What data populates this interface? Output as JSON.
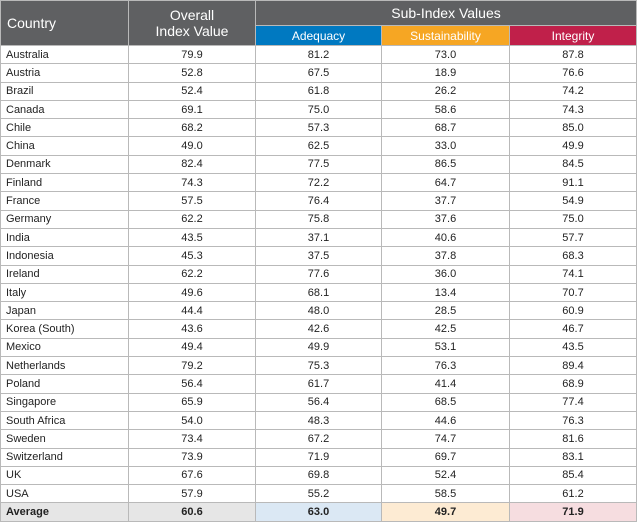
{
  "header": {
    "country": "Country",
    "overall_line1": "Overall",
    "overall_line2": "Index Value",
    "subindex": "Sub-Index Values",
    "columns": {
      "adequacy": "Adequacy",
      "sustainability": "Sustainability",
      "integrity": "Integrity"
    }
  },
  "colors": {
    "header_gray": "#5f6062",
    "adequacy": "#0079c1",
    "sustainability": "#f6a623",
    "integrity": "#c0204a",
    "avg_gray": "#e6e6e6",
    "avg_adequacy": "#dbe8f4",
    "avg_sustainability": "#fdebd3",
    "avg_integrity": "#f6dde0"
  },
  "rows": [
    {
      "country": "Australia",
      "overall": "79.9",
      "adequacy": "81.2",
      "sustainability": "73.0",
      "integrity": "87.8"
    },
    {
      "country": "Austria",
      "overall": "52.8",
      "adequacy": "67.5",
      "sustainability": "18.9",
      "integrity": "76.6"
    },
    {
      "country": "Brazil",
      "overall": "52.4",
      "adequacy": "61.8",
      "sustainability": "26.2",
      "integrity": "74.2"
    },
    {
      "country": "Canada",
      "overall": "69.1",
      "adequacy": "75.0",
      "sustainability": "58.6",
      "integrity": "74.3"
    },
    {
      "country": "Chile",
      "overall": "68.2",
      "adequacy": "57.3",
      "sustainability": "68.7",
      "integrity": "85.0"
    },
    {
      "country": "China",
      "overall": "49.0",
      "adequacy": "62.5",
      "sustainability": "33.0",
      "integrity": "49.9"
    },
    {
      "country": "Denmark",
      "overall": "82.4",
      "adequacy": "77.5",
      "sustainability": "86.5",
      "integrity": "84.5"
    },
    {
      "country": "Finland",
      "overall": "74.3",
      "adequacy": "72.2",
      "sustainability": "64.7",
      "integrity": "91.1"
    },
    {
      "country": "France",
      "overall": "57.5",
      "adequacy": "76.4",
      "sustainability": "37.7",
      "integrity": "54.9"
    },
    {
      "country": "Germany",
      "overall": "62.2",
      "adequacy": "75.8",
      "sustainability": "37.6",
      "integrity": "75.0"
    },
    {
      "country": "India",
      "overall": "43.5",
      "adequacy": "37.1",
      "sustainability": "40.6",
      "integrity": "57.7"
    },
    {
      "country": "Indonesia",
      "overall": "45.3",
      "adequacy": "37.5",
      "sustainability": "37.8",
      "integrity": "68.3"
    },
    {
      "country": "Ireland",
      "overall": "62.2",
      "adequacy": "77.6",
      "sustainability": "36.0",
      "integrity": "74.1"
    },
    {
      "country": "Italy",
      "overall": "49.6",
      "adequacy": "68.1",
      "sustainability": "13.4",
      "integrity": "70.7"
    },
    {
      "country": "Japan",
      "overall": "44.4",
      "adequacy": "48.0",
      "sustainability": "28.5",
      "integrity": "60.9"
    },
    {
      "country": "Korea (South)",
      "overall": "43.6",
      "adequacy": "42.6",
      "sustainability": "42.5",
      "integrity": "46.7"
    },
    {
      "country": "Mexico",
      "overall": "49.4",
      "adequacy": "49.9",
      "sustainability": "53.1",
      "integrity": "43.5"
    },
    {
      "country": "Netherlands",
      "overall": "79.2",
      "adequacy": "75.3",
      "sustainability": "76.3",
      "integrity": "89.4"
    },
    {
      "country": "Poland",
      "overall": "56.4",
      "adequacy": "61.7",
      "sustainability": "41.4",
      "integrity": "68.9"
    },
    {
      "country": "Singapore",
      "overall": "65.9",
      "adequacy": "56.4",
      "sustainability": "68.5",
      "integrity": "77.4"
    },
    {
      "country": "South Africa",
      "overall": "54.0",
      "adequacy": "48.3",
      "sustainability": "44.6",
      "integrity": "76.3"
    },
    {
      "country": "Sweden",
      "overall": "73.4",
      "adequacy": "67.2",
      "sustainability": "74.7",
      "integrity": "81.6"
    },
    {
      "country": "Switzerland",
      "overall": "73.9",
      "adequacy": "71.9",
      "sustainability": "69.7",
      "integrity": "83.1"
    },
    {
      "country": "UK",
      "overall": "67.6",
      "adequacy": "69.8",
      "sustainability": "52.4",
      "integrity": "85.4"
    },
    {
      "country": "USA",
      "overall": "57.9",
      "adequacy": "55.2",
      "sustainability": "58.5",
      "integrity": "61.2"
    }
  ],
  "average": {
    "country": "Average",
    "overall": "60.6",
    "adequacy": "63.0",
    "sustainability": "49.7",
    "integrity": "71.9"
  }
}
